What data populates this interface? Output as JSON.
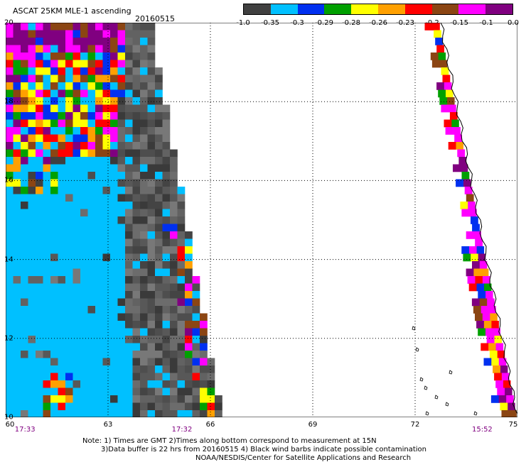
{
  "header": {
    "title": "ASCAT 25KM MLE-1 ascending",
    "date": "20160515"
  },
  "colorbar": {
    "labels": [
      "-1.0",
      "-0.35",
      "-0.3",
      "-0.29",
      "-0.28",
      "-0.26",
      "-0.23",
      "-0.2",
      "-0.15",
      "-0.1",
      "0.0"
    ],
    "colors": [
      "#404040",
      "#00c0ff",
      "#0030f0",
      "#00a000",
      "#ffff00",
      "#ffa000",
      "#ff0000",
      "#8b4513",
      "#ff00ff",
      "#800080"
    ]
  },
  "axes": {
    "lat_labels": [
      "20",
      "18",
      "16",
      "14",
      "12",
      "10"
    ],
    "lon_labels": [
      "60",
      "63",
      "66",
      "69",
      "72",
      "75"
    ],
    "lat_range": [
      10,
      20
    ],
    "lon_range": [
      60,
      75
    ]
  },
  "swath_times": [
    "17:33",
    "17:32",
    "15:52"
  ],
  "notes": {
    "line1": "Note: 1) Times are GMT 2)Times along bottom correspond to measurement at 15N",
    "line2": "3)Data buffer is 22 hrs from 20160515 4) Black wind barbs indicate possible contamination",
    "line3": "NOAA/NESDIS/Center for Satellite Applications and Research"
  }
}
